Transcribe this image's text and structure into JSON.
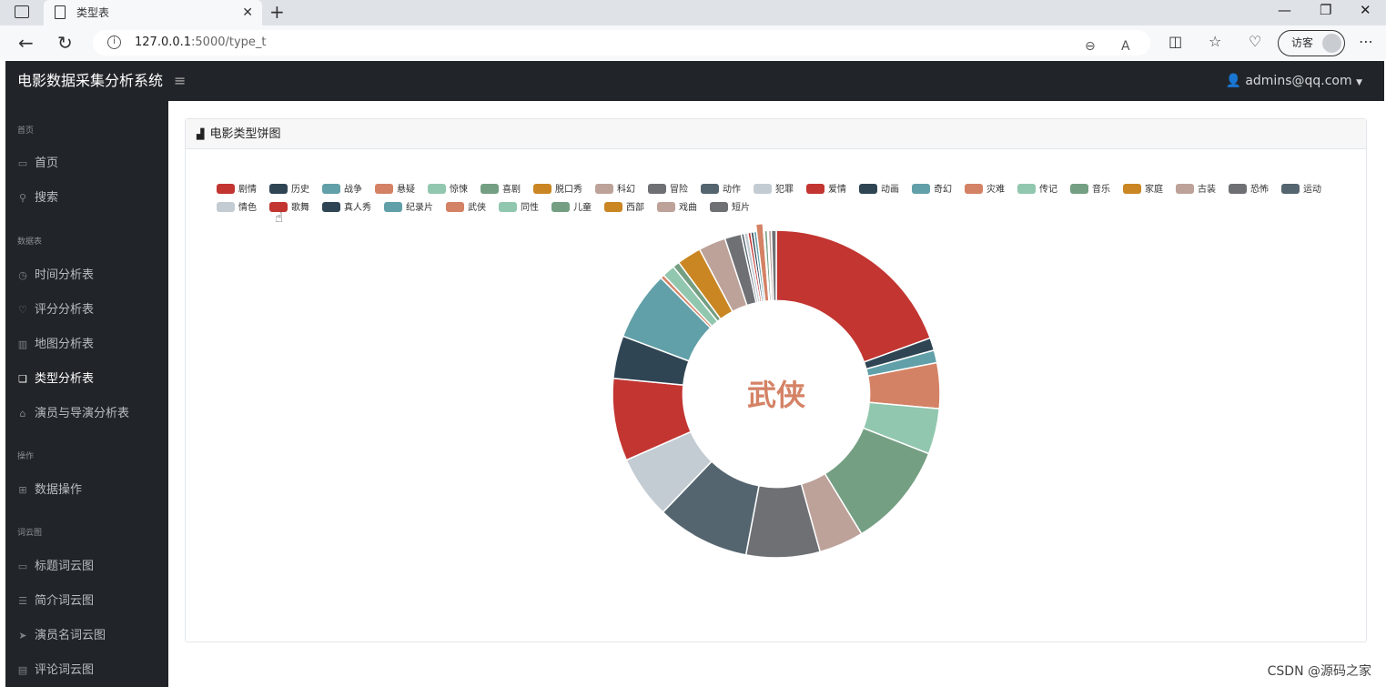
{
  "browser": {
    "tab_title": "类型表",
    "url_host": "127.0.0.1",
    "url_path": ":5000/type_t",
    "profile_label": "访客"
  },
  "app": {
    "brand": "电影数据采集分析系统",
    "user": "admins@qq.com"
  },
  "sidebar": {
    "sections": [
      {
        "title": "首页",
        "items": [
          {
            "label": "首页",
            "icon": "monitor-icon"
          },
          {
            "label": "搜索",
            "icon": "search-icon"
          }
        ]
      },
      {
        "title": "数据表",
        "items": [
          {
            "label": "时间分析表",
            "icon": "clock-icon"
          },
          {
            "label": "评分分析表",
            "icon": "heart-icon"
          },
          {
            "label": "地图分析表",
            "icon": "map-icon"
          },
          {
            "label": "类型分析表",
            "icon": "copy-icon",
            "active": true
          },
          {
            "label": "演员与导演分析表",
            "icon": "bank-icon"
          }
        ]
      },
      {
        "title": "操作",
        "items": [
          {
            "label": "数据操作",
            "icon": "table-icon"
          }
        ]
      },
      {
        "title": "词云图",
        "items": [
          {
            "label": "标题词云图",
            "icon": "chat-icon"
          },
          {
            "label": "简介词云图",
            "icon": "list-icon"
          },
          {
            "label": "演员名词云图",
            "icon": "send-icon"
          },
          {
            "label": "评论词云图",
            "icon": "comment-icon"
          }
        ]
      }
    ]
  },
  "card": {
    "title": "电影类型饼图"
  },
  "chart_data": {
    "type": "pie",
    "title": "",
    "center_label": "武侠",
    "categories": [
      "剧情",
      "历史",
      "战争",
      "悬疑",
      "惊悚",
      "喜剧",
      "脱口秀",
      "科幻",
      "冒险",
      "动作",
      "犯罪",
      "爱情",
      "动画",
      "奇幻",
      "灾难",
      "传记",
      "音乐",
      "家庭",
      "古装",
      "恐怖",
      "运动",
      "情色",
      "歌舞",
      "真人秀",
      "纪录片",
      "武侠",
      "同性",
      "儿童",
      "西部",
      "戏曲",
      "短片"
    ],
    "colors": [
      "#c23531",
      "#2f4554",
      "#61a0a8",
      "#d48265",
      "#91c7ae",
      "#749f83",
      "#ca8622",
      "#bda29a",
      "#6e7074",
      "#546570",
      "#c4ccd3",
      "#c23531",
      "#2f4554",
      "#61a0a8",
      "#d48265",
      "#91c7ae",
      "#749f83",
      "#ca8622",
      "#bda29a",
      "#6e7074",
      "#546570",
      "#c4ccd3",
      "#c23531",
      "#2f4554",
      "#61a0a8",
      "#d48265",
      "#91c7ae",
      "#749f83",
      "#ca8622",
      "#bda29a",
      "#6e7074"
    ],
    "values": [
      20.3,
      1.3,
      1.3,
      4.7,
      4.7,
      10.8,
      0,
      4.6,
      7.6,
      9.6,
      6.5,
      8.5,
      4.4,
      7.1,
      0.4,
      1.3,
      0.7,
      2.5,
      2.8,
      1.7,
      0.3,
      0.4,
      0.3,
      0.3,
      0.3,
      0.7,
      0.1,
      0.3,
      0.1,
      0.3,
      0.5
    ],
    "highlighted": "武侠",
    "legend_position": "top",
    "inner_radius_ratio": 0.57
  },
  "watermark": "CSDN @源码之家"
}
